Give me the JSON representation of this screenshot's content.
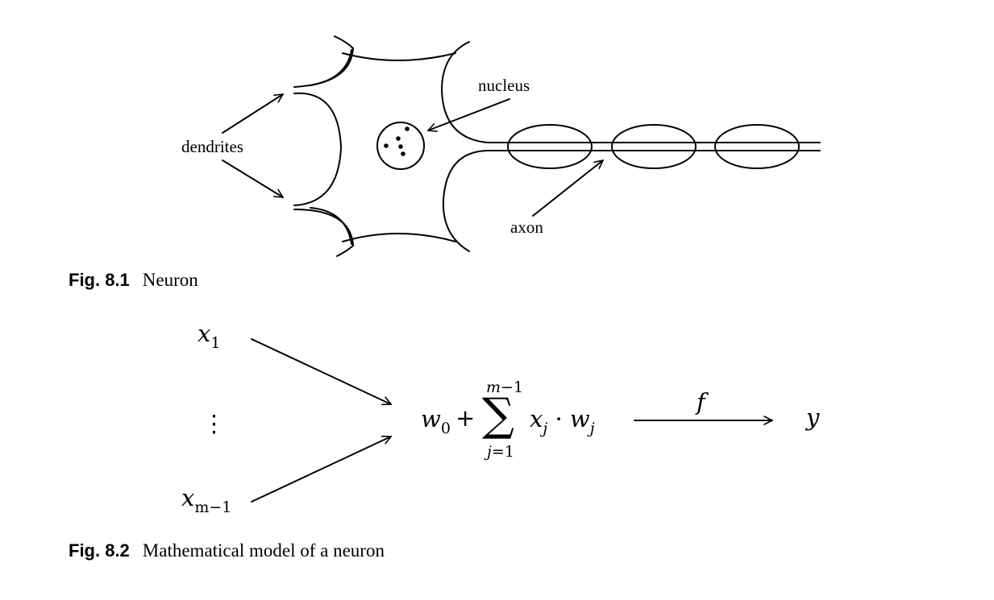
{
  "figure_1": {
    "labels": {
      "dendrites": "dendrites",
      "nucleus": "nucleus",
      "axon": "axon"
    },
    "caption": {
      "number": "Fig. 8.1",
      "text": "Neuron"
    }
  },
  "figure_2": {
    "inputs": {
      "first": {
        "var": "x",
        "sub": "1"
      },
      "dots": "⋮",
      "last": {
        "var": "x",
        "sub": "m−1"
      }
    },
    "sum": {
      "w0": {
        "var": "w",
        "sub": "0"
      },
      "plus": "+",
      "sigma": "∑",
      "upper_limit": "m−1",
      "lower_index": "j",
      "lower_eq": "=1",
      "term": {
        "x": "x",
        "x_sub": "j",
        "dot": "·",
        "w": "w",
        "w_sub": "j"
      }
    },
    "function_label": "f",
    "output": "y",
    "caption": {
      "number": "Fig. 8.2",
      "text": "Mathematical model of a neuron"
    }
  }
}
